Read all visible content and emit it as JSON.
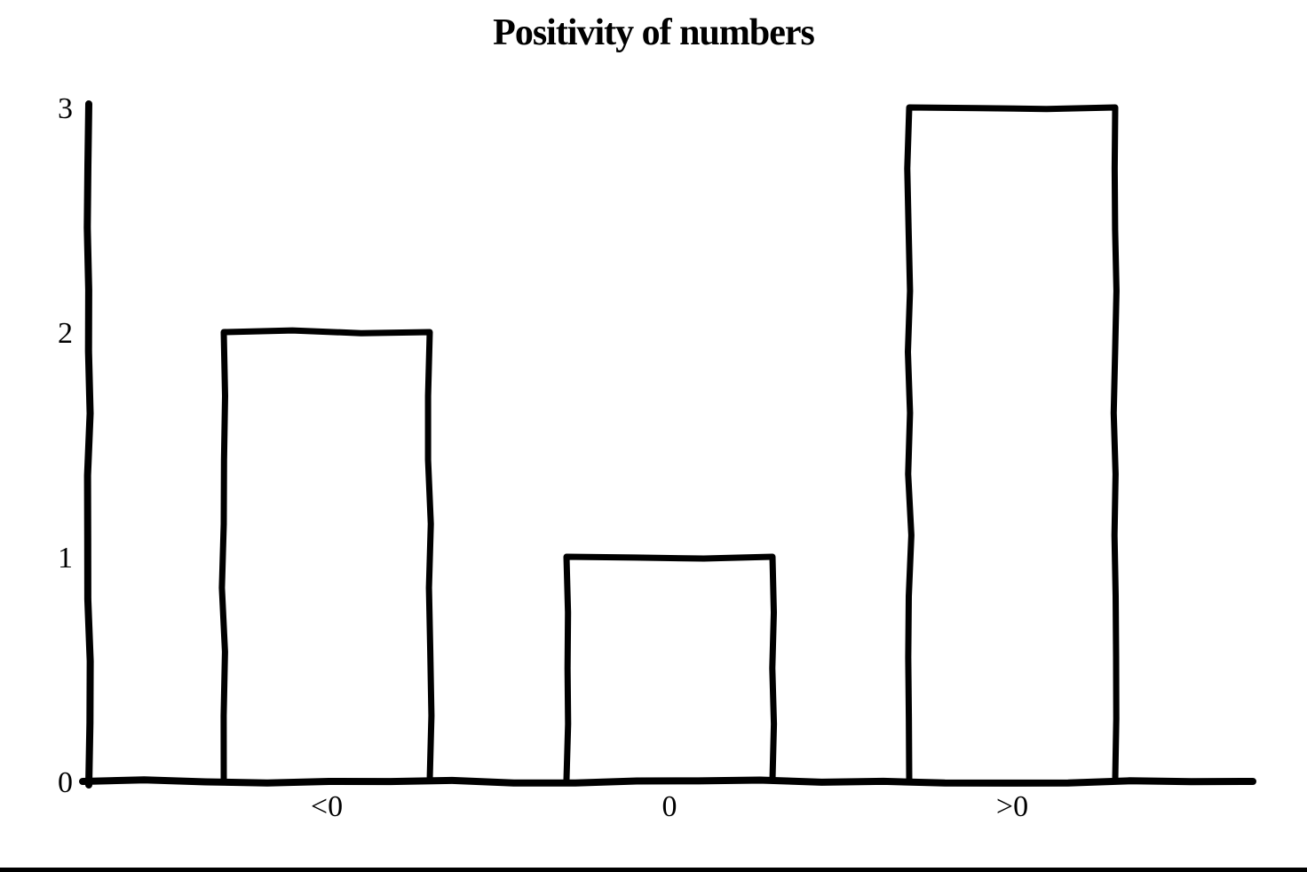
{
  "chart_data": {
    "type": "bar",
    "title": "Positivity of numbers",
    "categories": [
      "<0",
      "0",
      ">0"
    ],
    "values": [
      2,
      1,
      3
    ],
    "xlabel": "",
    "ylabel": "",
    "ylim": [
      0,
      3
    ],
    "yticks": [
      0,
      1,
      2,
      3
    ],
    "grid": false,
    "legend": null,
    "style": "hand-drawn",
    "stroke_color": "#000000",
    "bar_fill": "#ffffff",
    "background": "#ffffff"
  },
  "page": {
    "bottom_border_color": "#000000"
  }
}
